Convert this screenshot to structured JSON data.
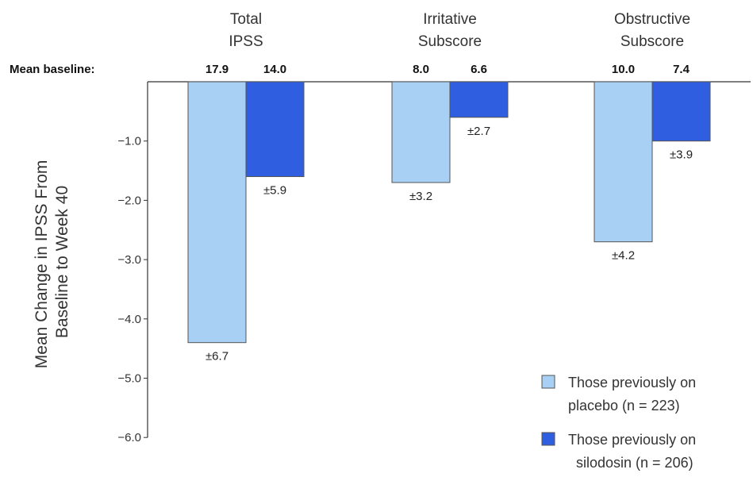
{
  "baseline_label": "Mean baseline:",
  "legend": [
    {
      "line1": "Those previously on",
      "line2": "placebo (n = 223)"
    },
    {
      "line1": "Those previously on",
      "line2": "silodosin   (n = 206)"
    }
  ],
  "colors": {
    "placebo": "#a8d0f5",
    "silodosin": "#2f5fe0",
    "axis": "#333333",
    "text": "#222222"
  },
  "chart_data": {
    "type": "bar",
    "ylabel": "Mean Change in IPSS From Baseline to Week 40",
    "ylim": [
      -6.0,
      0
    ],
    "yticks": [
      -1.0,
      -2.0,
      -3.0,
      -4.0,
      -5.0,
      -6.0
    ],
    "ytick_labels": [
      "−1.0",
      "−2.0",
      "−3.0",
      "−4.0",
      "−5.0",
      "−6.0"
    ],
    "grid": false,
    "legend_position": "bottom-right",
    "categories": [
      {
        "line1": "Total",
        "line2": "IPSS"
      },
      {
        "line1": "Irritative",
        "line2": "Subscore"
      },
      {
        "line1": "Obstructive",
        "line2": "Subscore"
      }
    ],
    "series": [
      {
        "key": "placebo",
        "values": [
          -4.4,
          -1.7,
          -2.7
        ],
        "errors": [
          "±6.7",
          "±3.2",
          "±4.2"
        ],
        "baseline": [
          "17.9",
          "8.0",
          "10.0"
        ]
      },
      {
        "key": "silodosin",
        "values": [
          -1.6,
          -0.6,
          -1.0
        ],
        "errors": [
          "±5.9",
          "±2.7",
          "±3.9"
        ],
        "baseline": [
          "14.0",
          "6.6",
          "7.4"
        ]
      }
    ]
  }
}
